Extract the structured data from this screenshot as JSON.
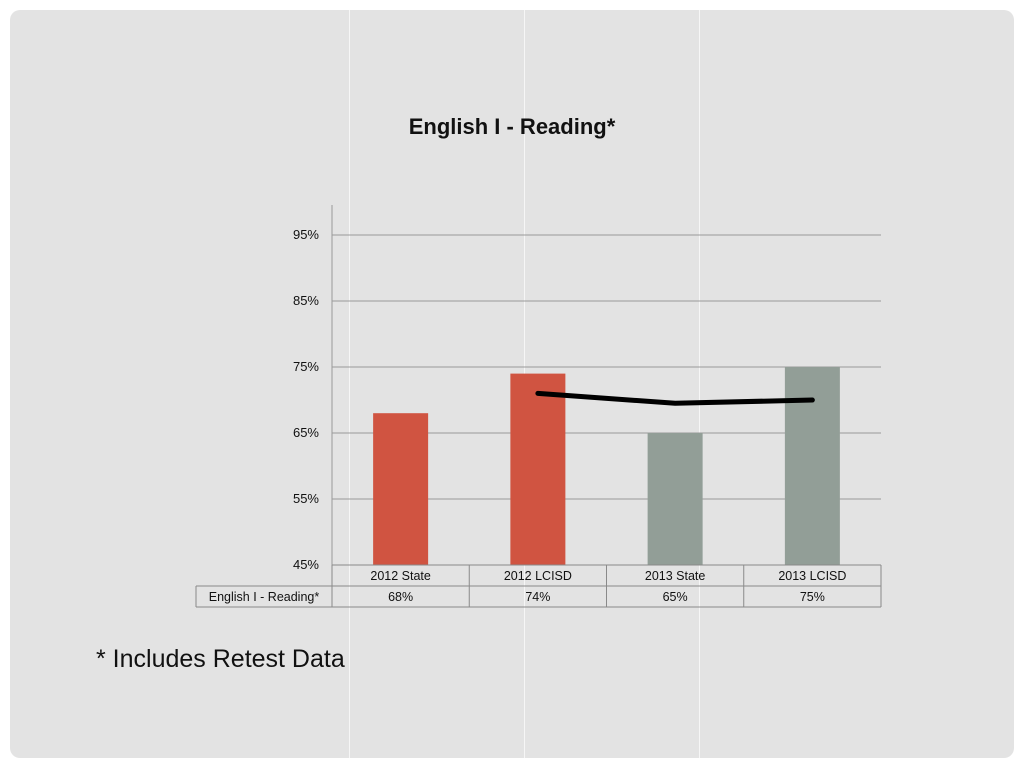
{
  "chart_data": {
    "type": "bar",
    "title": "English I - Reading*",
    "categories": [
      "2012 State",
      "2012 LCISD",
      "2013 State",
      "2013 LCISD"
    ],
    "values": [
      68,
      74,
      65,
      75
    ],
    "colors": [
      "#d05441",
      "#d05441",
      "#929e97",
      "#929e97"
    ],
    "ylim": [
      45,
      100
    ],
    "yticks": [
      45,
      55,
      65,
      75,
      85,
      95
    ],
    "ytick_labels": [
      "45%",
      "55%",
      "65%",
      "75%",
      "85%",
      "95%"
    ],
    "trendline": {
      "from_category": 1,
      "to_category": 3,
      "values": [
        71,
        69.5,
        70
      ],
      "color": "#000000"
    },
    "data_table": {
      "row_label": "English I - Reading*",
      "cells": [
        "68%",
        "74%",
        "65%",
        "75%"
      ]
    },
    "grid": true
  },
  "footnote": "* Includes Retest Data"
}
